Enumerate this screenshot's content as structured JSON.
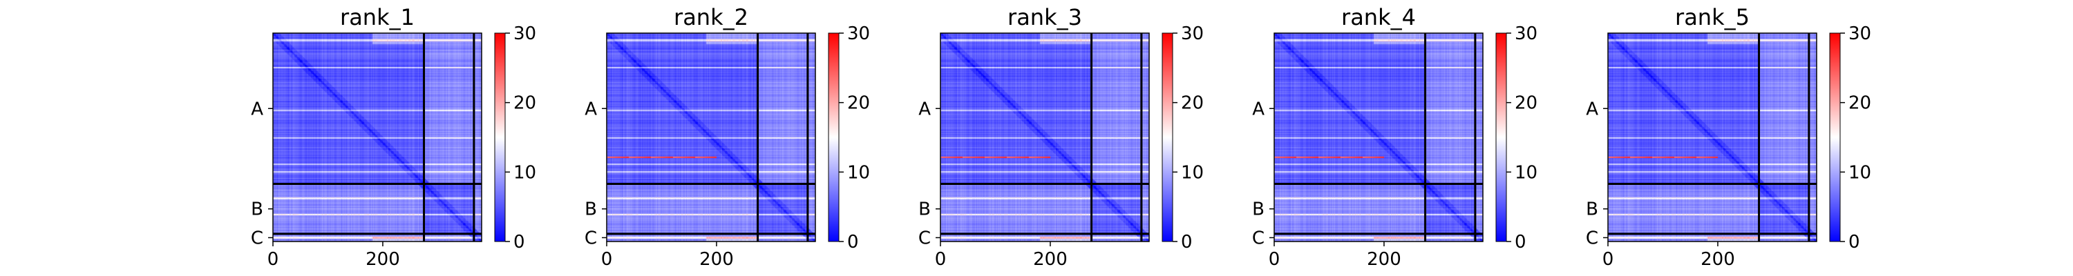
{
  "chart_data": {
    "type": "heatmap",
    "colormap": [
      "#0000ff",
      "#ffffff",
      "#ff0000"
    ],
    "color_range": [
      0,
      30
    ],
    "colorbar_ticks": [
      0,
      10,
      20,
      30
    ],
    "x_ticks": [
      0,
      200
    ],
    "chain_labels": [
      "A",
      "B",
      "C"
    ],
    "residues": 380,
    "chain_breaks": [
      275,
      366
    ],
    "panels": [
      {
        "title": "rank_1",
        "hot_row": null
      },
      {
        "title": "rank_2",
        "hot_row": 225
      },
      {
        "title": "rank_3",
        "hot_row": 225
      },
      {
        "title": "rank_4",
        "hot_row": 225
      },
      {
        "title": "rank_5",
        "hot_row": 225
      }
    ]
  }
}
